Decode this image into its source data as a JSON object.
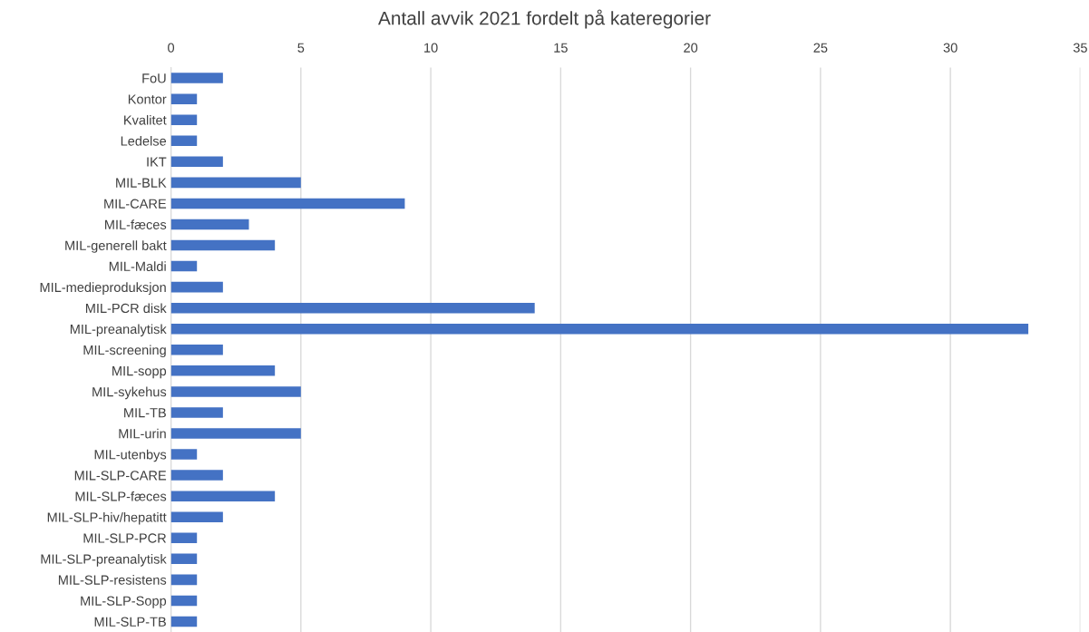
{
  "chart_data": {
    "type": "bar",
    "orientation": "horizontal",
    "title": "Antall avvik 2021 fordelt på kateregorier",
    "categories": [
      "FoU",
      "Kontor",
      "Kvalitet",
      "Ledelse",
      "IKT",
      "MIL-BLK",
      "MIL-CARE",
      "MIL-fæces",
      "MIL-generell bakt",
      "MIL-Maldi",
      "MIL-medieproduksjon",
      "MIL-PCR disk",
      "MIL-preanalytisk",
      "MIL-screening",
      "MIL-sopp",
      "MIL-sykehus",
      "MIL-TB",
      "MIL-urin",
      "MIL-utenbys",
      "MIL-SLP-CARE",
      "MIL-SLP-fæces",
      "MIL-SLP-hiv/hepatitt",
      "MIL-SLP-PCR",
      "MIL-SLP-preanalytisk",
      "MIL-SLP-resistens",
      "MIL-SLP-Sopp",
      "MIL-SLP-TB"
    ],
    "values": [
      2,
      1,
      1,
      1,
      2,
      5,
      9,
      3,
      4,
      1,
      2,
      14,
      33,
      2,
      4,
      5,
      2,
      5,
      1,
      2,
      4,
      2,
      1,
      1,
      1,
      1,
      1
    ],
    "color": "#4472c4",
    "xlim": [
      0,
      35
    ],
    "xticks": [
      0,
      5,
      10,
      15,
      20,
      25,
      30,
      35
    ],
    "grid": "x",
    "legend": false
  }
}
